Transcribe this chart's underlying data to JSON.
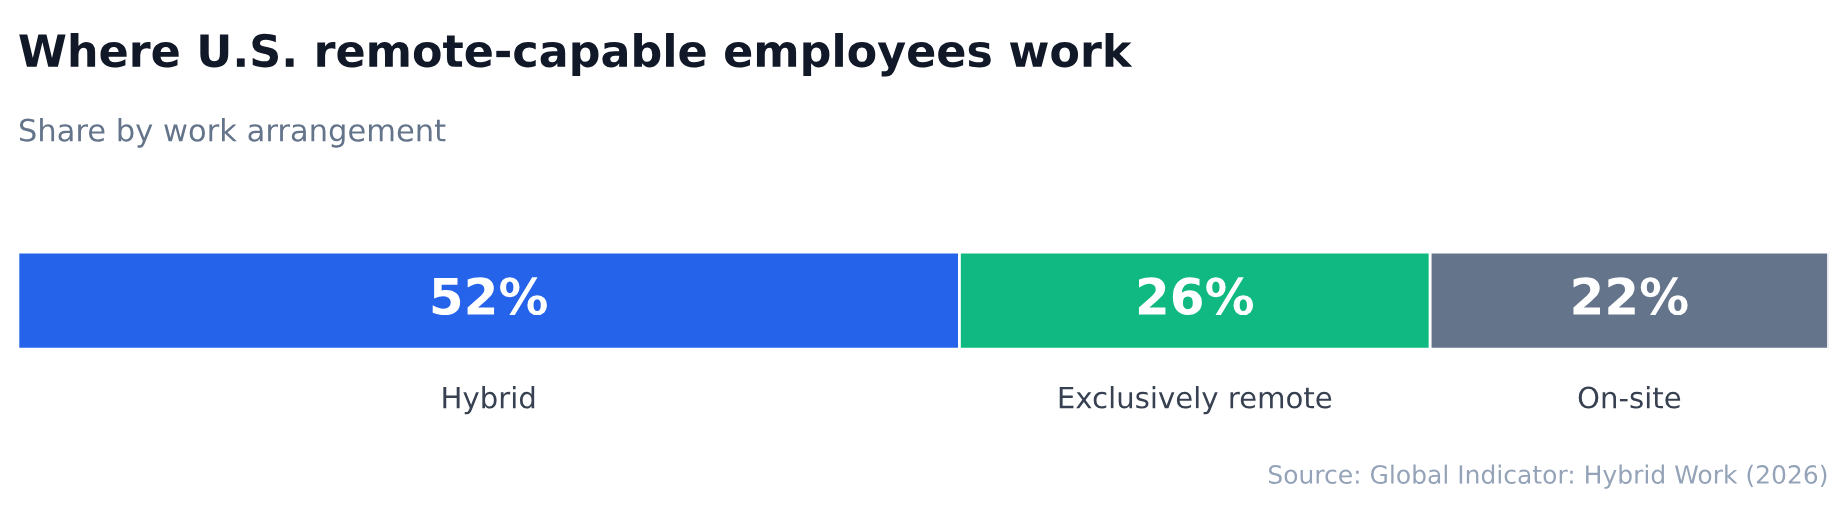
{
  "chart_data": {
    "type": "bar",
    "orientation": "horizontal",
    "stacked": true,
    "title": "Where U.S. remote-capable employees work",
    "subtitle": "Share by work arrangement",
    "categories": [
      null
    ],
    "series": [
      {
        "name": "Hybrid",
        "color": "#2563eb",
        "values": [
          52
        ],
        "value_labels": [
          "52%"
        ]
      },
      {
        "name": "Exclusively remote",
        "color": "#10b981",
        "values": [
          26
        ],
        "value_labels": [
          "26%"
        ]
      },
      {
        "name": "On-site",
        "color": "#64748b",
        "values": [
          22
        ],
        "value_labels": [
          "22%"
        ]
      }
    ],
    "annotations": [
      "Source: Global Indicator: Hybrid Work (2026)"
    ]
  }
}
